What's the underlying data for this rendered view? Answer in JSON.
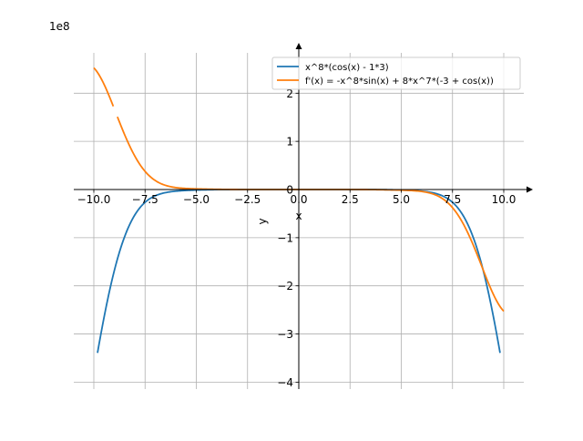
{
  "chart_data": {
    "type": "line",
    "title": "",
    "xlabel": "x",
    "ylabel": "y",
    "offset_label": "1e8",
    "xlim": [
      -11,
      11
    ],
    "ylim": [
      -4.2,
      2.85
    ],
    "y_scale": 100000000,
    "grid": true,
    "legend_position": "top-right",
    "x_ticks": [
      -10,
      -7.5,
      -5,
      -2.5,
      0,
      2.5,
      5,
      7.5,
      10
    ],
    "x_tick_labels": [
      "−10.0",
      "−7.5",
      "−5.0",
      "−2.5",
      "0.0",
      "2.5",
      "5.0",
      "7.5",
      "10.0"
    ],
    "y_ticks": [
      -4,
      -3,
      -2,
      -1,
      0,
      1,
      2
    ],
    "y_tick_labels": [
      "−4",
      "−3",
      "−2",
      "−1",
      "0",
      "1",
      "2"
    ],
    "series": [
      {
        "name": "x^8*(cos(x) - 1*3)",
        "color": "#1f77b4",
        "expr": "f",
        "x_range": [
          -9.82,
          9.82
        ],
        "gaps": [],
        "sample_values": {
          "-9.8": -334500000,
          "0": 0,
          "9.8": -334500000
        }
      },
      {
        "name": "f'(x) = -x^8*sin(x) + 8*x^7*(-3 + cos(x))",
        "color": "#ff7f0e",
        "expr": "df",
        "x_range": [
          -10,
          10
        ],
        "gaps": [
          [
            -9.02,
            -8.85
          ]
        ],
        "sample_values": {
          "-10": 252700000,
          "0": 0,
          "10": -252700000
        }
      }
    ]
  }
}
